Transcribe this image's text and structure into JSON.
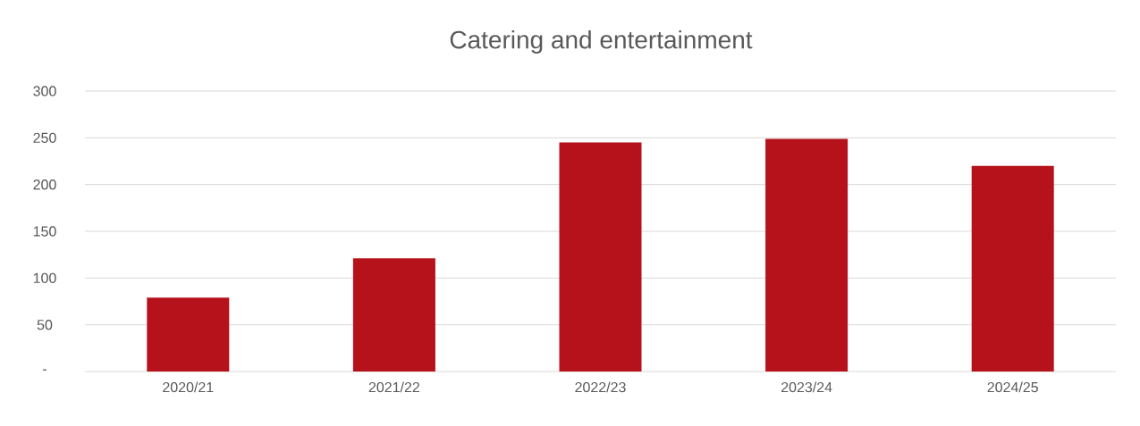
{
  "chart_data": {
    "type": "bar",
    "title": "Catering and entertainment",
    "categories": [
      "2020/21",
      "2021/22",
      "2022/23",
      "2023/24",
      "2024/25"
    ],
    "values": [
      79,
      121,
      245,
      249,
      220
    ],
    "color": "#b5121b",
    "ylim": [
      0,
      300
    ],
    "yticks": [
      {
        "value": 0,
        "label": "-"
      },
      50,
      100,
      150,
      200,
      250,
      300
    ],
    "grid": "y"
  }
}
